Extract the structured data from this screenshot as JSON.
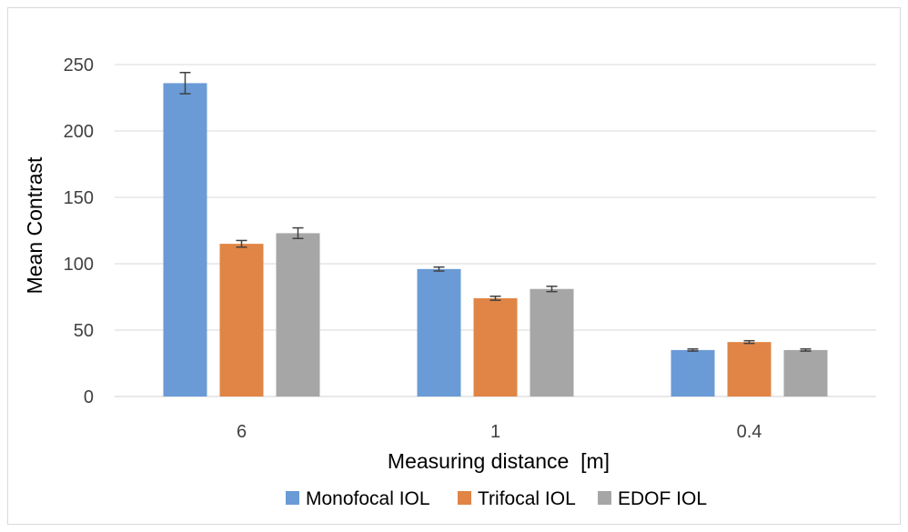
{
  "chart_data": {
    "type": "bar",
    "categories": [
      "6",
      "1",
      "0.4"
    ],
    "series": [
      {
        "name": "Monofocal IOL",
        "color": "#6a9bd6",
        "values": [
          236,
          96,
          35
        ],
        "errors": [
          8,
          1.5,
          0.8
        ]
      },
      {
        "name": "Trifocal IOL",
        "color": "#e08545",
        "values": [
          115,
          74,
          41
        ],
        "errors": [
          2.5,
          1.5,
          1
        ]
      },
      {
        "name": "EDOF IOL",
        "color": "#a6a6a6",
        "values": [
          123,
          81,
          35
        ],
        "errors": [
          4,
          2,
          0.8
        ]
      }
    ],
    "title": "",
    "xlabel": "Measuring distance  [m]",
    "ylabel": "Mean Contrast",
    "ylim": [
      0,
      250
    ],
    "yticks": [
      "0",
      "50",
      "100",
      "150",
      "200",
      "250"
    ],
    "grid": true,
    "legend_position": "bottom"
  }
}
